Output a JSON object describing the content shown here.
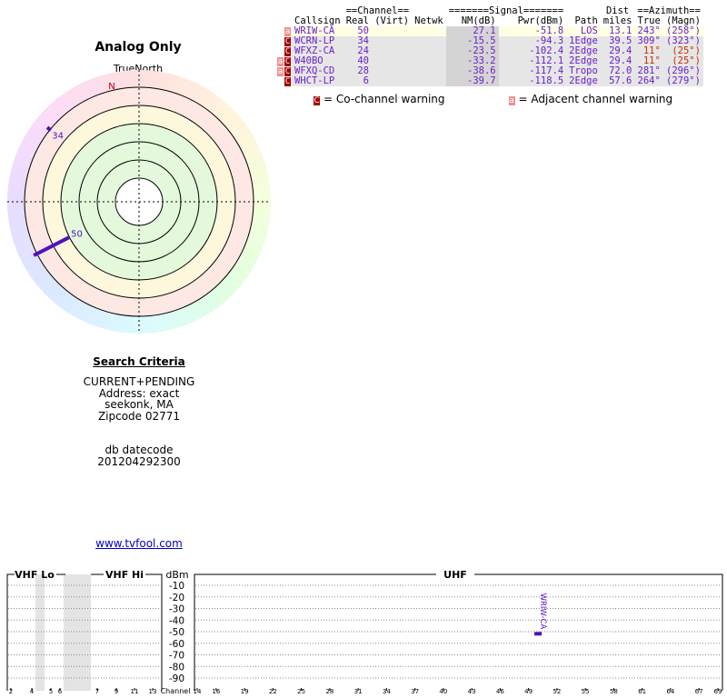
{
  "title": "Analog Only",
  "true_north": "TrueNorth",
  "north": "N",
  "table": {
    "group_headers": [
      "==Channel==",
      "=======Signal=======",
      "Dist",
      "==Azimuth=="
    ],
    "columns": [
      "Callsign",
      "Real",
      "(Virt)",
      "Netwk",
      "NM(dB)",
      "Pwr(dBm)",
      "Path",
      "miles",
      "True",
      "(Magn)"
    ],
    "rows": [
      {
        "flags": [
          "a"
        ],
        "callsign": "WRIW-CA",
        "real": 50,
        "nm": 27.1,
        "pwr": -51.8,
        "path": "LOS",
        "dist": "13.1",
        "true": {
          "value": 243,
          "label": "243°"
        },
        "magn": "(258°)"
      },
      {
        "flags": [
          "C"
        ],
        "callsign": "WCRN-LP",
        "real": 34,
        "nm": -15.5,
        "pwr": -94.3,
        "path": "1Edge",
        "dist": "39.5",
        "true": {
          "value": 309,
          "label": "309°"
        },
        "magn": "(323°)"
      },
      {
        "flags": [
          "C"
        ],
        "callsign": "WFXZ-CA",
        "real": 24,
        "nm": -23.5,
        "pwr": -102.4,
        "path": "2Edge",
        "dist": "29.4",
        "true": {
          "value": 11,
          "label": "11°"
        },
        "magn": "(25°)"
      },
      {
        "flags": [
          "a",
          "C"
        ],
        "callsign": "W40BO",
        "real": 40,
        "nm": -33.2,
        "pwr": -112.1,
        "path": "2Edge",
        "dist": "29.4",
        "true": {
          "value": 11,
          "label": "11°"
        },
        "magn": "(25°)"
      },
      {
        "flags": [
          "a",
          "C"
        ],
        "callsign": "WFXQ-CD",
        "real": 28,
        "nm": -38.6,
        "pwr": -117.4,
        "path": "Tropo",
        "dist": "72.0",
        "true": {
          "value": 281,
          "label": "281°"
        },
        "magn": "(296°)"
      },
      {
        "flags": [
          "C"
        ],
        "callsign": "WHCT-LP",
        "real": 6,
        "nm": -39.7,
        "pwr": -118.5,
        "path": "2Edge",
        "dist": "57.6",
        "true": {
          "value": 264,
          "label": "264°"
        },
        "magn": "(279°)"
      }
    ]
  },
  "legend": [
    {
      "icon": "C",
      "text": "= Co-channel warning"
    },
    {
      "icon": "a",
      "text": "= Adjacent channel warning"
    }
  ],
  "search": {
    "heading": "Search Criteria",
    "lines": [
      "CURRENT+PENDING",
      "Address: exact",
      "seekonk, MA",
      "Zipcode 02771"
    ],
    "db": [
      "db datecode",
      "201204292300"
    ]
  },
  "link": "www.tvfool.com",
  "spectrum": {
    "vhf_lo": "VHF Lo",
    "vhf_hi": "VHF Hi",
    "uhf": "UHF",
    "y_label": "dBm",
    "x_label": "Channel",
    "yticks": [
      -10,
      -20,
      -30,
      -40,
      -50,
      -60,
      -70,
      -80,
      -90
    ],
    "vhf_channels": [
      2,
      4,
      5,
      6,
      7,
      9,
      11,
      13
    ],
    "uhf_channels": [
      14,
      16,
      19,
      22,
      25,
      28,
      31,
      34,
      37,
      40,
      43,
      46,
      49,
      52,
      55,
      58,
      61,
      64,
      67,
      69
    ]
  }
}
